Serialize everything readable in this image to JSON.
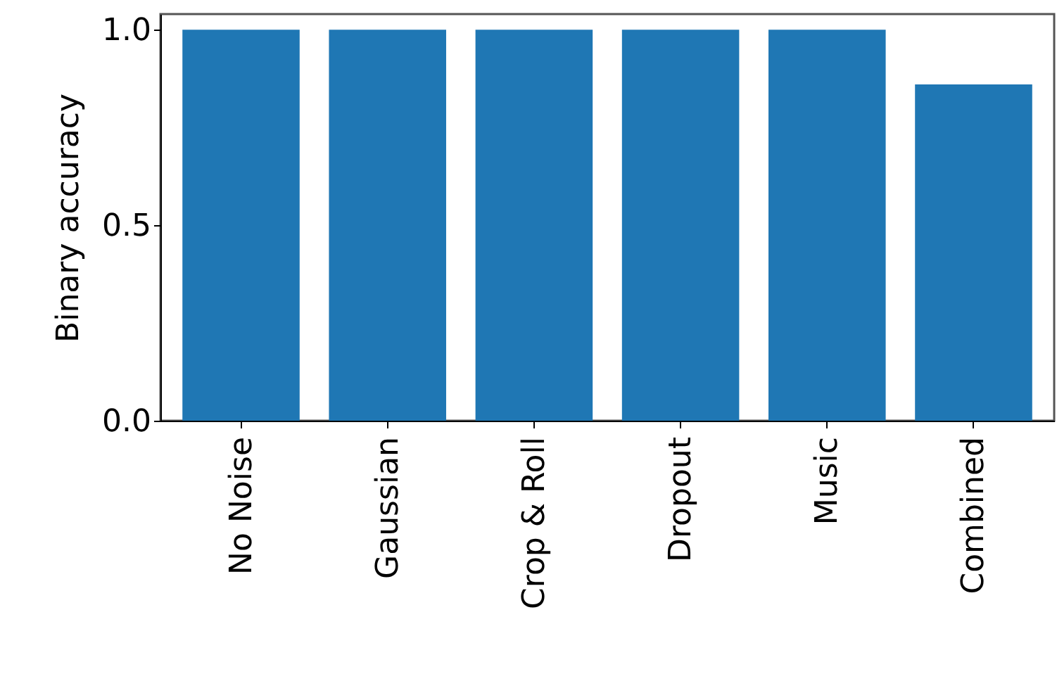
{
  "chart_data": {
    "type": "bar",
    "ylabel": "Binary accuracy",
    "categories": [
      "No Noise",
      "Gaussian",
      "Crop & Roll",
      "Dropout",
      "Music",
      "Combined"
    ],
    "values": [
      1.0,
      1.0,
      1.0,
      1.0,
      1.0,
      0.86
    ],
    "color": "#1f77b4",
    "ylim": [
      0,
      1.04
    ],
    "yticks": [
      {
        "value": 0,
        "label": "0.0"
      },
      {
        "value": 0.5,
        "label": "0.5"
      },
      {
        "value": 1.0,
        "label": "1.0"
      }
    ],
    "grid": false
  }
}
